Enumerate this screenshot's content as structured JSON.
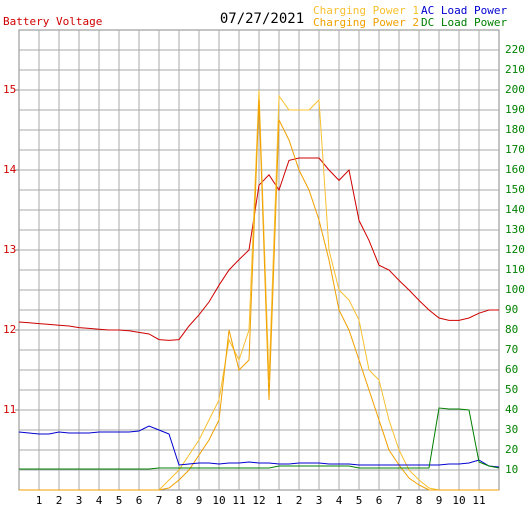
{
  "chart_data": {
    "type": "line",
    "title": "07/27/2021",
    "xlim": [
      0,
      24
    ],
    "xticks": [
      1,
      2,
      3,
      4,
      5,
      6,
      7,
      8,
      9,
      10,
      11,
      12,
      {
        "value": 13,
        "label": "1"
      },
      {
        "value": 14,
        "label": "2"
      },
      {
        "value": 15,
        "label": "3"
      },
      {
        "value": 16,
        "label": "4"
      },
      {
        "value": 17,
        "label": "5"
      },
      {
        "value": 18,
        "label": "6"
      },
      {
        "value": 19,
        "label": "7"
      },
      {
        "value": 20,
        "label": "8"
      },
      {
        "value": 21,
        "label": "9"
      },
      {
        "value": 22,
        "label": "10"
      },
      {
        "value": 23,
        "label": "11"
      }
    ],
    "ylim": [
      10,
      15.75
    ],
    "yticks": [
      11,
      12,
      13,
      14,
      15
    ],
    "y2lim": [
      0,
      230
    ],
    "y2ticks": [
      10,
      20,
      30,
      40,
      50,
      60,
      70,
      80,
      90,
      100,
      110,
      120,
      130,
      140,
      150,
      160,
      170,
      180,
      190,
      200,
      210,
      220
    ],
    "grid": true,
    "x": [
      0,
      0.5,
      1,
      1.5,
      2,
      2.5,
      3,
      3.5,
      4,
      4.5,
      5,
      5.5,
      6,
      6.5,
      7,
      7.5,
      8,
      8.5,
      9,
      9.5,
      10,
      10.5,
      11,
      11.5,
      12,
      12.5,
      13,
      13.5,
      14,
      14.5,
      15,
      15.5,
      16,
      16.5,
      17,
      17.5,
      18,
      18.5,
      19,
      19.5,
      20,
      20.5,
      21,
      21.5,
      22,
      22.5,
      23,
      23.5,
      24
    ],
    "series": [
      {
        "name": "Battery Voltage",
        "color": "#d00000",
        "values": [
          12.1,
          12.09,
          12.08,
          12.07,
          12.06,
          12.05,
          12.03,
          12.02,
          12.01,
          12.0,
          12.0,
          11.99,
          11.97,
          11.95,
          11.88,
          11.87,
          11.88,
          12.05,
          12.19,
          12.35,
          12.56,
          12.75,
          12.88,
          13.0,
          13.81,
          13.94,
          13.75,
          14.12,
          14.15,
          14.15,
          14.15,
          14.0,
          13.87,
          14.0,
          13.37,
          13.12,
          12.81,
          12.75,
          12.62,
          12.5,
          12.37,
          12.25,
          12.15,
          12.12,
          12.12,
          12.15,
          12.21,
          12.25,
          12.25
        ]
      },
      {
        "name": "Charging Power 1",
        "color": "#f8c030",
        "axis": "y2",
        "values": [
          0,
          0,
          0,
          0,
          0,
          0,
          0,
          0,
          0,
          0,
          0,
          0,
          0,
          0,
          0,
          5,
          10,
          17.5,
          25,
          35,
          45,
          75,
          65,
          80,
          200,
          55,
          197,
          190,
          190,
          190,
          195,
          120,
          100,
          95,
          85,
          60,
          55,
          35,
          20,
          10,
          5,
          1,
          0,
          0,
          0,
          0,
          0,
          0,
          0
        ]
      },
      {
        "name": "Charging Power 2",
        "color": "#f0a000",
        "axis": "y2",
        "values": [
          0,
          0,
          0,
          0,
          0,
          0,
          0,
          0,
          0,
          0,
          0,
          0,
          0,
          0,
          0,
          1,
          5,
          10,
          17.5,
          25,
          35,
          80,
          60,
          65,
          195,
          45,
          185,
          175,
          160,
          150,
          135,
          115,
          90,
          80,
          65,
          50,
          35,
          20,
          12.5,
          6,
          2.5,
          0,
          0,
          0,
          0,
          0,
          0,
          0,
          0
        ]
      },
      {
        "name": "AC Load Power",
        "color": "#0000d0",
        "axis": "y2",
        "values": [
          29,
          28.5,
          28,
          28,
          29,
          28.5,
          28.5,
          28.5,
          29,
          29,
          29,
          29,
          29.5,
          32,
          30,
          28,
          12.5,
          13,
          13.5,
          13.5,
          13,
          13.5,
          13.5,
          14,
          13.5,
          13.5,
          13,
          13,
          13.5,
          13.5,
          13.5,
          13,
          13,
          13,
          12.5,
          12.5,
          12.5,
          12.5,
          12.5,
          12.5,
          12.5,
          12.5,
          12.5,
          13,
          13,
          13.5,
          15,
          12,
          11.5
        ]
      },
      {
        "name": "DC Load Power",
        "color": "#008000",
        "axis": "y2",
        "values": [
          10.5,
          10.5,
          10.5,
          10.5,
          10.5,
          10.5,
          10.5,
          10.5,
          10.5,
          10.5,
          10.5,
          10.5,
          10.5,
          10.5,
          11,
          11,
          11,
          11,
          11,
          11,
          11,
          11,
          11,
          11,
          11,
          11,
          12,
          12,
          12,
          12,
          12,
          12,
          12,
          12,
          11,
          11,
          11,
          11,
          11,
          11,
          11,
          11,
          41,
          40.5,
          40.5,
          40,
          14,
          12,
          11
        ]
      }
    ]
  }
}
